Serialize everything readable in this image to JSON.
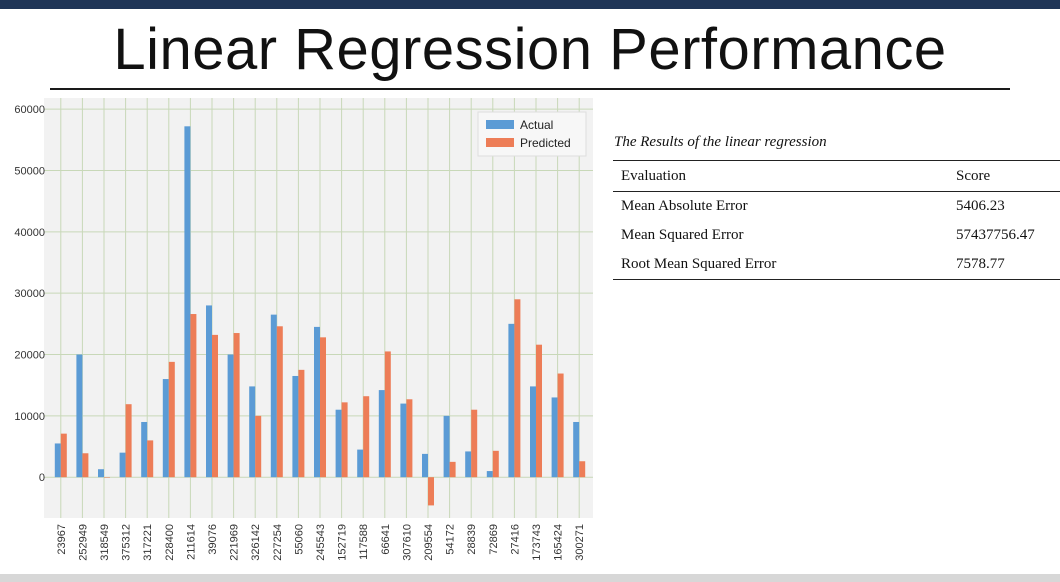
{
  "slide": {
    "title": "Linear Regression Performance"
  },
  "table": {
    "caption": "The Results of the linear regression",
    "headers": [
      "Evaluation",
      "Score"
    ],
    "rows": [
      [
        "Mean Absolute Error",
        "5406.23"
      ],
      [
        "Mean Squared Error",
        "57437756.47"
      ],
      [
        "Root Mean Squared Error",
        "7578.77"
      ]
    ]
  },
  "chart_data": {
    "type": "bar",
    "title": "",
    "xlabel": "",
    "ylabel": "",
    "ylim": [
      -6000,
      61000
    ],
    "yticks": [
      0,
      10000,
      20000,
      30000,
      40000,
      50000,
      60000
    ],
    "grid": true,
    "legend_position": "top-right",
    "colors": {
      "Actual": "#5b9bd5",
      "Predicted": "#ed7d57",
      "background": "#f2f2f2",
      "grid": "#c8d8b8"
    },
    "categories": [
      "23967",
      "252949",
      "318549",
      "375312",
      "317221",
      "228400",
      "211614",
      "39076",
      "221969",
      "326142",
      "227254",
      "55060",
      "245543",
      "152719",
      "117588",
      "66641",
      "307610",
      "209554",
      "54172",
      "28839",
      "72869",
      "27416",
      "173743",
      "165424",
      "300271"
    ],
    "series": [
      {
        "name": "Actual",
        "values": [
          5500,
          20000,
          1300,
          4000,
          9000,
          16000,
          57200,
          28000,
          20000,
          14800,
          26500,
          16500,
          24500,
          11000,
          4500,
          14200,
          12000,
          3800,
          10000,
          4200,
          1000,
          25000,
          14800,
          13000,
          9000
        ]
      },
      {
        "name": "Predicted",
        "values": [
          7100,
          3900,
          0,
          11900,
          6000,
          18800,
          26600,
          23200,
          23500,
          10000,
          24600,
          17500,
          22800,
          12200,
          13200,
          20500,
          12700,
          -4600,
          2500,
          11000,
          4300,
          29000,
          21600,
          16900,
          2600
        ]
      }
    ]
  }
}
